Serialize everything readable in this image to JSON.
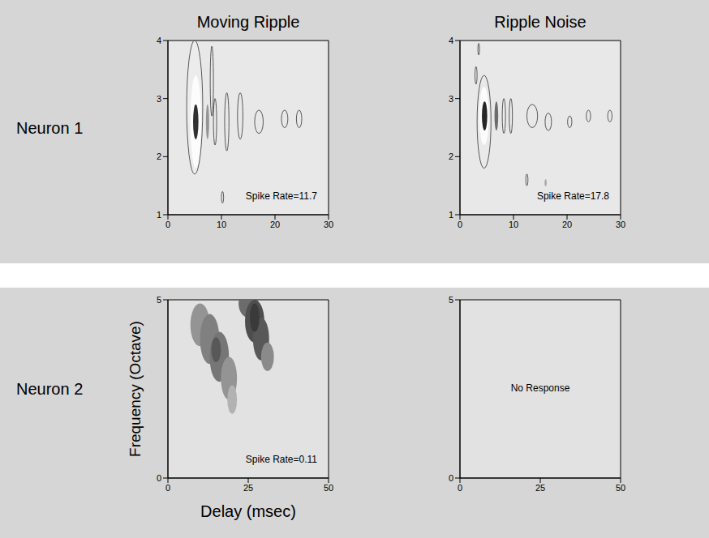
{
  "column_titles": [
    "Moving Ripple",
    "Ripple Noise"
  ],
  "row_labels": [
    "Neuron 1",
    "Neuron 2"
  ],
  "chart_data": [
    {
      "type": "contour",
      "annotation": "Spike Rate=11.7",
      "xlim": [
        0,
        30
      ],
      "ylim": [
        1,
        4
      ],
      "xticks": [
        0,
        10,
        20,
        30
      ],
      "yticks": [
        1,
        2,
        3,
        4
      ],
      "blobs": [
        {
          "x": 5.0,
          "y": 2.85,
          "rx": 1.5,
          "ry": 1.15,
          "level": -0.3
        },
        {
          "x": 5.0,
          "y": 2.85,
          "rx": 1.5,
          "ry": 1.15,
          "level": 0.05
        },
        {
          "x": 5.2,
          "y": 2.6,
          "rx": 1.0,
          "ry": 0.8,
          "level": -0.9
        },
        {
          "x": 5.2,
          "y": 2.6,
          "rx": 0.5,
          "ry": 0.3,
          "level": 0.9
        },
        {
          "x": 7.4,
          "y": 2.6,
          "rx": 0.3,
          "ry": 0.3,
          "level": 0.4
        },
        {
          "x": 8.2,
          "y": 3.3,
          "rx": 0.3,
          "ry": 0.6,
          "level": 0.05
        },
        {
          "x": 8.8,
          "y": 2.6,
          "rx": 0.3,
          "ry": 0.4,
          "level": 0.05
        },
        {
          "x": 11.0,
          "y": 2.6,
          "rx": 0.4,
          "ry": 0.5,
          "level": 0.05
        },
        {
          "x": 13.5,
          "y": 2.7,
          "rx": 0.5,
          "ry": 0.4,
          "level": 0.05
        },
        {
          "x": 17.0,
          "y": 2.6,
          "rx": 0.8,
          "ry": 0.2,
          "level": 0.05
        },
        {
          "x": 21.8,
          "y": 2.65,
          "rx": 0.6,
          "ry": 0.15,
          "level": 0.05
        },
        {
          "x": 24.5,
          "y": 2.65,
          "rx": 0.5,
          "ry": 0.15,
          "level": 0.05
        },
        {
          "x": 10.2,
          "y": 1.3,
          "rx": 0.2,
          "ry": 0.1,
          "level": 0.05
        }
      ]
    },
    {
      "type": "contour",
      "annotation": "Spike Rate=17.8",
      "xlim": [
        0,
        30
      ],
      "ylim": [
        1,
        4
      ],
      "xticks": [
        0,
        10,
        20,
        30
      ],
      "yticks": [
        1,
        2,
        3,
        4
      ],
      "blobs": [
        {
          "x": 4.5,
          "y": 2.6,
          "rx": 1.3,
          "ry": 0.8,
          "level": -0.2
        },
        {
          "x": 4.5,
          "y": 2.6,
          "rx": 1.3,
          "ry": 0.8,
          "level": 0.05
        },
        {
          "x": 4.5,
          "y": 2.7,
          "rx": 0.9,
          "ry": 0.5,
          "level": -0.9
        },
        {
          "x": 4.6,
          "y": 2.7,
          "rx": 0.5,
          "ry": 0.25,
          "level": 0.95
        },
        {
          "x": 6.8,
          "y": 2.7,
          "rx": 0.35,
          "ry": 0.25,
          "level": 0.6
        },
        {
          "x": 8.2,
          "y": 2.7,
          "rx": 0.3,
          "ry": 0.3,
          "level": -0.3
        },
        {
          "x": 8.2,
          "y": 2.7,
          "rx": 0.3,
          "ry": 0.3,
          "level": 0.05
        },
        {
          "x": 9.5,
          "y": 2.7,
          "rx": 0.3,
          "ry": 0.3,
          "level": 0.05
        },
        {
          "x": 3.0,
          "y": 3.4,
          "rx": 0.2,
          "ry": 0.15,
          "level": 0.05
        },
        {
          "x": 3.5,
          "y": 3.85,
          "rx": 0.15,
          "ry": 0.1,
          "level": 0.05
        },
        {
          "x": 13.5,
          "y": 2.7,
          "rx": 1.0,
          "ry": 0.2,
          "level": 0.05
        },
        {
          "x": 16.5,
          "y": 2.6,
          "rx": 0.6,
          "ry": 0.15,
          "level": 0.05
        },
        {
          "x": 20.5,
          "y": 2.6,
          "rx": 0.4,
          "ry": 0.1,
          "level": 0.05
        },
        {
          "x": 24.0,
          "y": 2.7,
          "rx": 0.4,
          "ry": 0.1,
          "level": 0.05
        },
        {
          "x": 28.0,
          "y": 2.7,
          "rx": 0.4,
          "ry": 0.1,
          "level": 0.05
        },
        {
          "x": 12.5,
          "y": 1.6,
          "rx": 0.2,
          "ry": 0.1,
          "level": 0.05
        },
        {
          "x": 16.0,
          "y": 1.55,
          "rx": 0.2,
          "ry": 0.06,
          "level": 0.3
        }
      ]
    },
    {
      "type": "contour",
      "annotation": "Spike Rate=0.11",
      "x_label": "Delay (msec)",
      "y_label": "Frequency (Octave)",
      "xlim": [
        0,
        50
      ],
      "ylim": [
        0,
        5
      ],
      "xticks": [
        0,
        25,
        50
      ],
      "yticks": [
        0,
        5
      ],
      "blobs": [
        {
          "x": 10,
          "y": 4.3,
          "rx": 3,
          "ry": 0.6,
          "level": 0.4
        },
        {
          "x": 13,
          "y": 3.9,
          "rx": 3,
          "ry": 0.7,
          "level": 0.5
        },
        {
          "x": 16,
          "y": 3.4,
          "rx": 3,
          "ry": 0.7,
          "level": 0.55
        },
        {
          "x": 19,
          "y": 2.8,
          "rx": 2.5,
          "ry": 0.6,
          "level": 0.4
        },
        {
          "x": 20,
          "y": 2.2,
          "rx": 1.5,
          "ry": 0.4,
          "level": 0.25
        },
        {
          "x": 15,
          "y": 3.6,
          "rx": 1.5,
          "ry": 0.35,
          "level": 0.7
        },
        {
          "x": 25,
          "y": 4.9,
          "rx": 3,
          "ry": 0.4,
          "level": 0.6
        },
        {
          "x": 27,
          "y": 4.4,
          "rx": 3,
          "ry": 0.6,
          "level": 0.75
        },
        {
          "x": 29,
          "y": 3.9,
          "rx": 2.5,
          "ry": 0.6,
          "level": 0.7
        },
        {
          "x": 31,
          "y": 3.4,
          "rx": 2,
          "ry": 0.4,
          "level": 0.45
        },
        {
          "x": 27,
          "y": 4.5,
          "rx": 1.5,
          "ry": 0.4,
          "level": 0.85
        }
      ]
    },
    {
      "type": "contour",
      "annotation": "No Response",
      "xlim": [
        0,
        50
      ],
      "ylim": [
        0,
        5
      ],
      "xticks": [
        0,
        25,
        50
      ],
      "yticks": [
        0,
        5
      ],
      "blobs": []
    }
  ]
}
